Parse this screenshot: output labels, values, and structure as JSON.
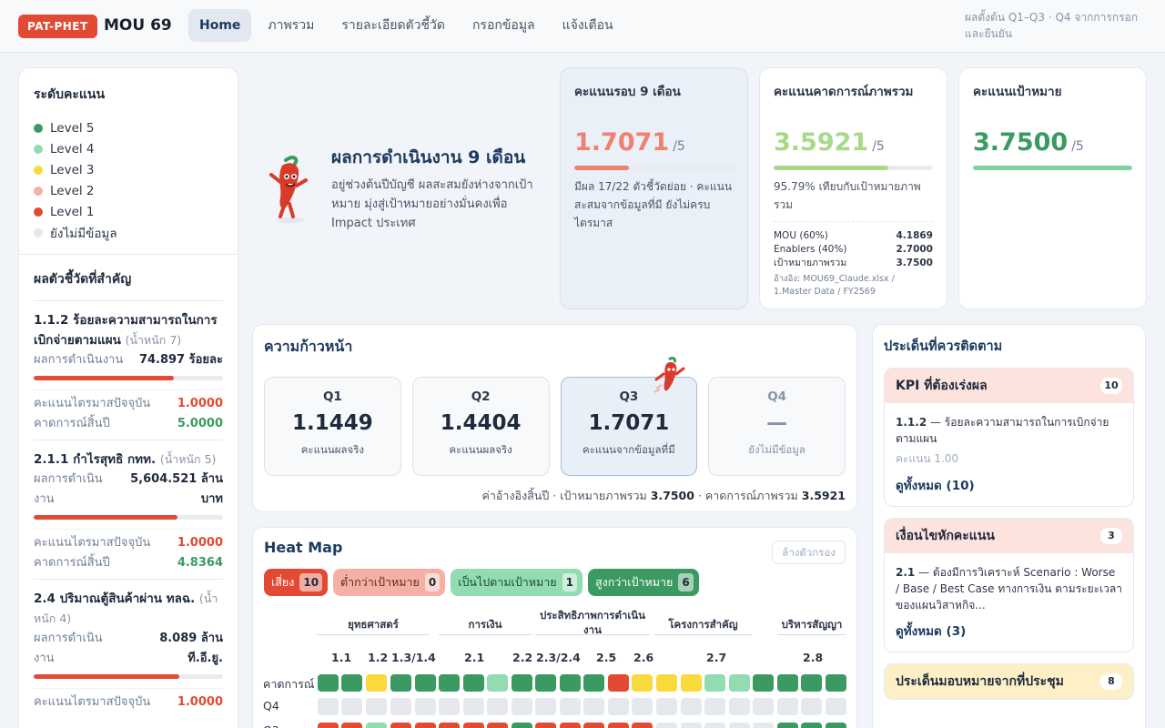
{
  "brand": {
    "badge": "PAT-PHET",
    "title": "MOU 69"
  },
  "nav": [
    "Home",
    "ภาพรวม",
    "รายละเอียดตัวชี้วัด",
    "กรอกข้อมูล",
    "แจ้งเตือน"
  ],
  "top_note": "ผลตั้งต้น Q1–Q3 · Q4 จากการกรอกและยืนยัน",
  "legend": {
    "title": "ระดับคะแนน",
    "items": [
      {
        "label": "Level 5",
        "color": "#3a9a62"
      },
      {
        "label": "Level 4",
        "color": "#93dbb0"
      },
      {
        "label": "Level 3",
        "color": "#f9d93b"
      },
      {
        "label": "Level 2",
        "color": "#f5b0a6"
      },
      {
        "label": "Level 1",
        "color": "#e24a33"
      },
      {
        "label": "ยังไม่มีข้อมูล",
        "color": "#e5e8ec"
      }
    ]
  },
  "kpis": {
    "title": "ผลตัวชี้วัดที่สำคัญ",
    "items": [
      {
        "title": "1.1.2 ร้อยละความสามารถในการเบิกจ่ายตามแผน",
        "weight": "(น้ำหนัก 7)",
        "perf_label": "ผลการดำเนินงาน",
        "perf": "74.897 ร้อยละ",
        "progress": 0.74,
        "q_label": "คะแนนไตรมาสปัจจุบัน",
        "q": "1.0000",
        "year_label": "คาดการณ์สิ้นปี",
        "year": "5.0000"
      },
      {
        "title": "2.1.1 กำไรสุทธิ กทท.",
        "weight": "(น้ำหนัก 5)",
        "perf_label": "ผลการดำเนินงาน",
        "perf": "5,604.521 ล้านบาท",
        "progress": 0.76,
        "q_label": "คะแนนไตรมาสปัจจุบัน",
        "q": "1.0000",
        "year_label": "คาดการณ์สิ้นปี",
        "year": "4.8364"
      },
      {
        "title": "2.4 ปริมาณตู้สินค้าผ่าน ทลฉ.",
        "weight": "(น้ำหนัก 4)",
        "perf_label": "ผลการดำเนินงาน",
        "perf": "8.089 ล้าน ที.อี.ยู.",
        "progress": 0.77,
        "q_label": "คะแนนไตรมาสปัจจุบัน",
        "q": "1.0000",
        "year_label": "",
        "year": ""
      }
    ]
  },
  "hero": {
    "title": "ผลการดำเนินงาน 9 เดือน",
    "desc": "อยู่ช่วงต้นปีบัญชี ผลสะสมยังห่างจากเป้าหมาย มุ่งสู่เป้าหมายอย่างมั่นคงเพื่อ Impact ประเทศ"
  },
  "scores": {
    "round": {
      "label": "คะแนนรอบ 9 เดือน",
      "value": "1.7071",
      "unit": "/5",
      "fill": 0.34,
      "note": "มีผล 17/22 ตัวชี้วัดย่อย · คะแนนสะสมจากข้อมูลที่มี ยังไม่ครบไตรมาส"
    },
    "forecast": {
      "label": "คะแนนคาดการณ์ภาพรวม",
      "value": "3.5921",
      "unit": "/5",
      "fill": 0.72,
      "note": "95.79% เทียบกับเป้าหมายภาพรวม",
      "rows": [
        {
          "k": "MOU (60%)",
          "v": "4.1869"
        },
        {
          "k": "Enablers (40%)",
          "v": "2.7000"
        },
        {
          "k": "เป้าหมายภาพรวม",
          "v": "3.7500"
        }
      ],
      "source": "อ้างอิง: MOU69_Claude.xlsx / 1.Master Data / FY2569"
    },
    "target": {
      "label": "คะแนนเป้าหมาย",
      "value": "3.7500",
      "unit": "/5",
      "fill": 1.0
    }
  },
  "progress": {
    "title": "ความก้าวหน้า",
    "quarters": [
      {
        "name": "Q1",
        "value": "1.1449",
        "sub": "คะแนนผลจริง"
      },
      {
        "name": "Q2",
        "value": "1.4404",
        "sub": "คะแนนผลจริง"
      },
      {
        "name": "Q3",
        "value": "1.7071",
        "sub": "คะแนนจากข้อมูลที่มี"
      },
      {
        "name": "Q4",
        "value": "—",
        "sub": "ยังไม่มีข้อมูล"
      }
    ],
    "ref_prefix": "ค่าอ้างอิงสิ้นปี · เป้าหมายภาพรวม",
    "ref_target": "3.7500",
    "ref_mid": "· คาดการณ์ภาพรวม",
    "ref_forecast": "3.5921"
  },
  "heatmap": {
    "title": "Heat Map",
    "clear": "ล้างตัวกรอง",
    "chips": [
      {
        "label": "เสี่ยง",
        "count": "10"
      },
      {
        "label": "ต่ำกว่าเป้าหมาย",
        "count": "0"
      },
      {
        "label": "เป็นไปตามเป้าหมาย",
        "count": "1"
      },
      {
        "label": "สูงกว่าเป้าหมาย",
        "count": "6"
      }
    ],
    "groups": [
      "ยุทธศาสตร์",
      "การเงิน",
      "ประสิทธิภาพการดำเนินงาน",
      "โครงการสำคัญ",
      "บริหารสัญญา"
    ],
    "subs": [
      "1.1",
      "1.2",
      "1.3/1.4",
      "2.1",
      "2.2",
      "2.3/2.4",
      "2.5",
      "2.6",
      "2.7",
      "2.8"
    ],
    "row_labels": [
      "คาดการณ์",
      "Q4",
      "Q3"
    ],
    "rows": [
      [
        "#3a9a62",
        "#3a9a62",
        "#f9d93b",
        "#3a9a62",
        "#3a9a62",
        "#3a9a62",
        "#3a9a62",
        "#93dbb0",
        "#3a9a62",
        "#3a9a62",
        "#3a9a62",
        "#3a9a62",
        "#e24a33",
        "#f9d93b",
        "#f9d93b",
        "#f9d93b",
        "#93dbb0",
        "#93dbb0",
        "#3a9a62",
        "#3a9a62",
        "#3a9a62",
        "#3a9a62"
      ],
      [
        "#e5e8ec",
        "#e5e8ec",
        "#e5e8ec",
        "#e5e8ec",
        "#e5e8ec",
        "#e5e8ec",
        "#e5e8ec",
        "#e5e8ec",
        "#e5e8ec",
        "#e5e8ec",
        "#e5e8ec",
        "#e5e8ec",
        "#e5e8ec",
        "#e5e8ec",
        "#e5e8ec",
        "#e5e8ec",
        "#e5e8ec",
        "#e5e8ec",
        "#e5e8ec",
        "#e5e8ec",
        "#e5e8ec",
        "#e5e8ec"
      ],
      [
        "#e24a33",
        "#e24a33",
        "#93dbb0",
        "#e24a33",
        "#e24a33",
        "#e24a33",
        "#e24a33",
        "#e24a33",
        "#3a9a62",
        "#e24a33",
        "#e24a33",
        "#e24a33",
        "#e24a33",
        "#e24a33",
        "#e5e8ec",
        "#e5e8ec",
        "#e5e8ec",
        "#e5e8ec",
        "#e5e8ec",
        "#3a9a62",
        "#3a9a62",
        "#3a9a62"
      ]
    ]
  },
  "watch": {
    "title": "ประเด็นที่ควรติดตาม",
    "boxes": [
      {
        "title": "KPI ที่ต้องเร่งผล",
        "count": "10",
        "code": "1.1.2",
        "text": " — ร้อยละความสามารถในการเบิกจ่ายตามแผน",
        "score": "คะแนน 1.00",
        "all": "ดูทั้งหมด (10)"
      },
      {
        "title": "เงื่อนไขหักคะแนน",
        "count": "3",
        "code": "2.1",
        "text": " — ต้องมีการวิเคราะห์ Scenario : Worse / Base / Best Case ทางการเงิน ตามระยะเวลาของแผนวิสาหกิจ...",
        "score": "",
        "all": "ดูทั้งหมด (3)"
      },
      {
        "title": "ประเด็นมอบหมายจากที่ประชุม",
        "count": "8",
        "code": "",
        "text": "",
        "score": "",
        "all": ""
      }
    ]
  }
}
